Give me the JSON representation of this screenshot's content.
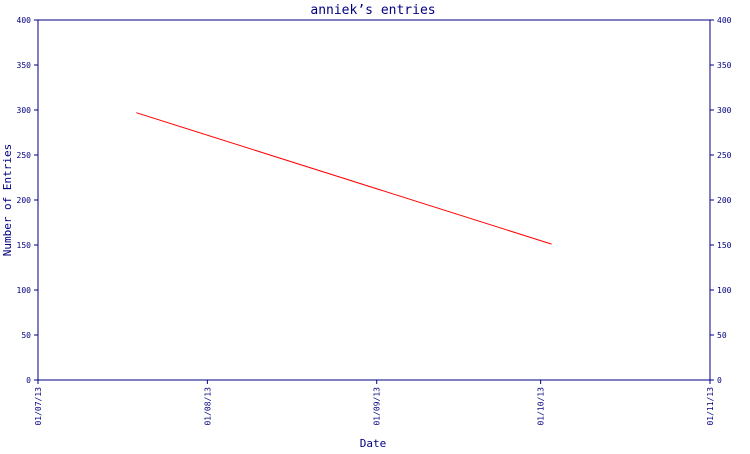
{
  "chart_data": {
    "type": "line",
    "title": "anniek’s entries",
    "xlabel": "Date",
    "ylabel": "Number of Entries",
    "x_ticks": [
      "01/07/13",
      "01/08/13",
      "01/09/13",
      "01/10/13",
      "01/11/13"
    ],
    "y_ticks": [
      0,
      50,
      100,
      150,
      200,
      250,
      300,
      350,
      400
    ],
    "ylim": [
      0,
      400
    ],
    "right_axis": true,
    "grid": false,
    "series": [
      {
        "color": "#ff0000",
        "points": [
          {
            "x": "2013-07-19",
            "y": 297
          },
          {
            "x": "2013-10-03",
            "y": 151
          }
        ]
      }
    ],
    "axis_color": "#000080"
  }
}
